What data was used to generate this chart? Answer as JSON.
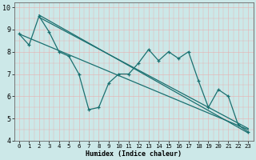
{
  "title": "",
  "xlabel": "Humidex (Indice chaleur)",
  "xlim": [
    -0.5,
    23.5
  ],
  "ylim": [
    4,
    10.2
  ],
  "yticks": [
    4,
    5,
    6,
    7,
    8,
    9,
    10
  ],
  "xticks": [
    0,
    1,
    2,
    3,
    4,
    5,
    6,
    7,
    8,
    9,
    10,
    11,
    12,
    13,
    14,
    15,
    16,
    17,
    18,
    19,
    20,
    21,
    22,
    23
  ],
  "bg_color": "#cce8e8",
  "grid_color": "#aad4d4",
  "line_color": "#1a7070",
  "line1_x": [
    0,
    1,
    2,
    3,
    4,
    5,
    6,
    7,
    8,
    9,
    10,
    11,
    12,
    13,
    14,
    15,
    16,
    17,
    18,
    19,
    20,
    21,
    22,
    23
  ],
  "line1_y": [
    8.8,
    8.3,
    9.6,
    8.9,
    8.0,
    7.8,
    7.0,
    5.4,
    5.5,
    6.6,
    7.0,
    7.0,
    7.5,
    8.1,
    7.6,
    8.0,
    7.7,
    8.0,
    6.7,
    5.5,
    6.3,
    6.0,
    4.7,
    4.4
  ],
  "line2_x": [
    2,
    23
  ],
  "line2_y": [
    9.65,
    4.35
  ],
  "line3_x": [
    2,
    23
  ],
  "line3_y": [
    9.55,
    4.55
  ],
  "line4_x": [
    0,
    23
  ],
  "line4_y": [
    8.8,
    4.5
  ]
}
